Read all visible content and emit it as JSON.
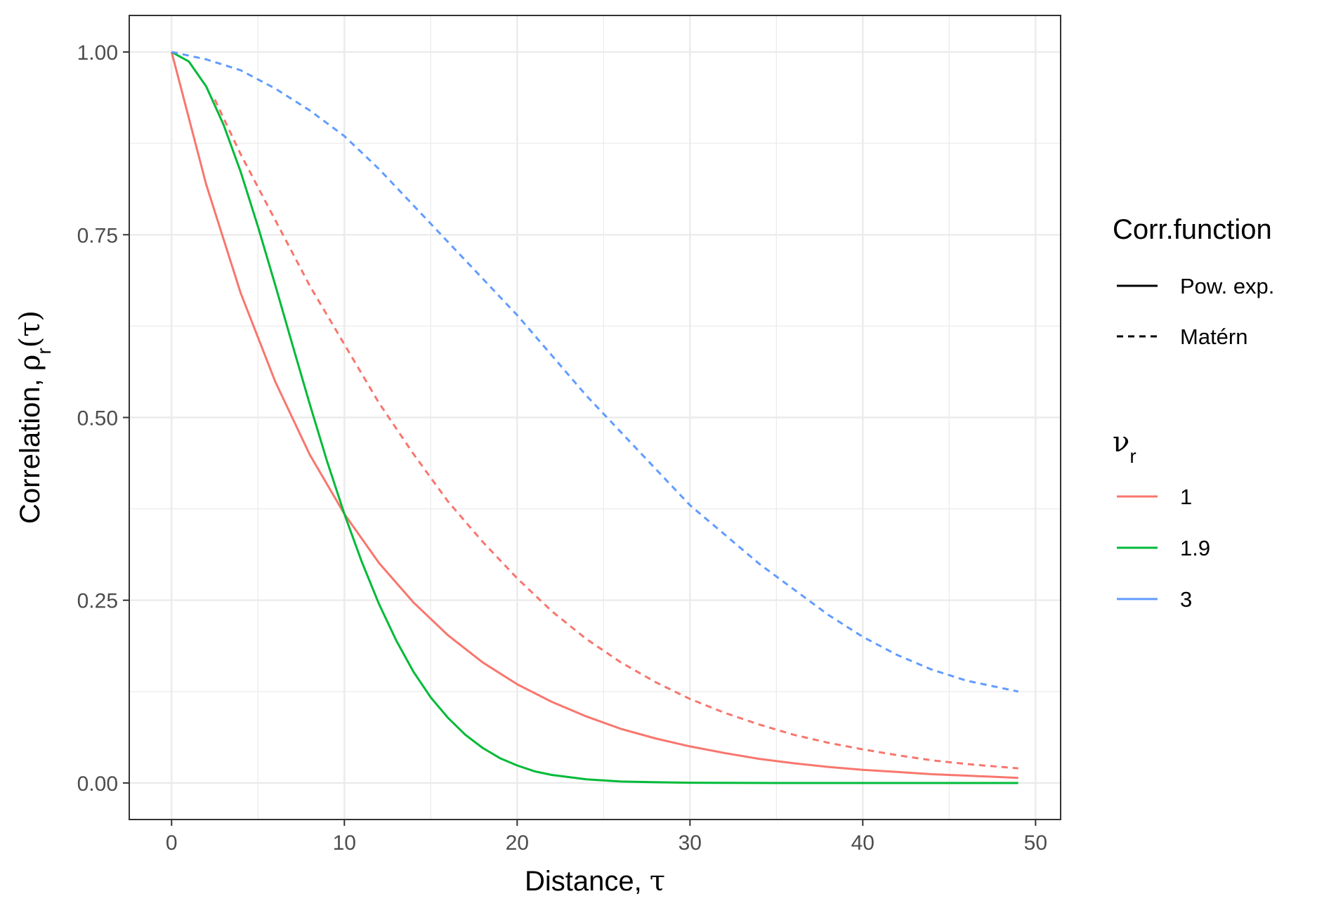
{
  "chart_data": {
    "type": "line",
    "xlabel": "Distance, ",
    "xlabel_symbol": "τ",
    "ylabel": "Correlation, ",
    "ylabel_symbol": "ρ",
    "ylabel_sub": "r",
    "ylabel_arg": "(τ)",
    "xlim": [
      -2.45,
      51.45
    ],
    "ylim": [
      -0.05,
      1.05
    ],
    "x_ticks": [
      0,
      10,
      20,
      30,
      40,
      50
    ],
    "x_tick_labels": [
      "0",
      "10",
      "20",
      "30",
      "40",
      "50"
    ],
    "y_ticks": [
      0,
      0.25,
      0.5,
      0.75,
      1
    ],
    "y_tick_labels": [
      "0.00",
      "0.25",
      "0.50",
      "0.75",
      "1.00"
    ],
    "grid": true,
    "legend_position": "right",
    "legend": {
      "linetype_title": "Corr.function",
      "linetype_items": [
        {
          "label": "Pow. exp.",
          "dash": "solid"
        },
        {
          "label": "Matérn",
          "dash": "dashed"
        }
      ],
      "color_title_symbol": "ν",
      "color_title_sub": "r",
      "color_items": [
        {
          "label": "1",
          "color": "#F8766D"
        },
        {
          "label": "1.9",
          "color": "#00BA38"
        },
        {
          "label": "3",
          "color": "#619CFF"
        }
      ]
    },
    "series": [
      {
        "name": "Pow. exp., 1",
        "color": "#F8766D",
        "dash": "solid",
        "x": [
          0,
          2,
          4,
          6,
          8,
          10,
          12,
          14,
          16,
          18,
          20,
          22,
          24,
          26,
          28,
          30,
          32,
          34,
          36,
          38,
          40,
          42,
          44,
          46,
          48,
          49
        ],
        "y": [
          1.0,
          0.819,
          0.67,
          0.549,
          0.449,
          0.368,
          0.301,
          0.247,
          0.202,
          0.165,
          0.135,
          0.111,
          0.091,
          0.074,
          0.061,
          0.05,
          0.041,
          0.033,
          0.027,
          0.022,
          0.018,
          0.015,
          0.012,
          0.01,
          0.008,
          0.007
        ]
      },
      {
        "name": "Pow. exp., 1.9",
        "color": "#00BA38",
        "dash": "solid",
        "x": [
          0,
          1,
          2,
          3,
          4,
          5,
          6,
          7,
          8,
          9,
          10,
          11,
          12,
          13,
          14,
          15,
          16,
          17,
          18,
          19,
          20,
          21,
          22,
          24,
          26,
          28,
          30,
          35,
          40,
          45,
          49
        ],
        "y": [
          1.0,
          0.987,
          0.953,
          0.901,
          0.836,
          0.761,
          0.681,
          0.599,
          0.518,
          0.44,
          0.368,
          0.303,
          0.245,
          0.195,
          0.152,
          0.117,
          0.089,
          0.066,
          0.048,
          0.034,
          0.024,
          0.016,
          0.011,
          0.005,
          0.002,
          0.001,
          0.0003,
          0.0,
          0.0,
          0.0,
          0.0
        ]
      },
      {
        "name": "Matérn, 1",
        "color": "#F8766D",
        "dash": "dashed",
        "x": [
          2.5,
          4,
          6,
          8,
          10,
          12,
          14,
          16,
          18,
          20,
          22,
          24,
          26,
          28,
          30,
          32,
          34,
          36,
          38,
          40,
          42,
          44,
          46,
          48,
          49
        ],
        "y": [
          0.935,
          0.86,
          0.77,
          0.68,
          0.6,
          0.52,
          0.45,
          0.385,
          0.33,
          0.28,
          0.235,
          0.197,
          0.165,
          0.138,
          0.115,
          0.096,
          0.08,
          0.066,
          0.055,
          0.046,
          0.038,
          0.031,
          0.026,
          0.022,
          0.02
        ]
      },
      {
        "name": "Matérn, 3",
        "color": "#619CFF",
        "dash": "dashed",
        "x": [
          0,
          2,
          4,
          6,
          8,
          10,
          12,
          14,
          16,
          18,
          20,
          22,
          24,
          26,
          28,
          30,
          32,
          34,
          36,
          38,
          40,
          42,
          44,
          46,
          48,
          49
        ],
        "y": [
          1.0,
          0.99,
          0.975,
          0.95,
          0.92,
          0.885,
          0.84,
          0.79,
          0.74,
          0.69,
          0.64,
          0.585,
          0.53,
          0.48,
          0.43,
          0.38,
          0.34,
          0.3,
          0.265,
          0.23,
          0.2,
          0.175,
          0.155,
          0.14,
          0.13,
          0.125
        ]
      }
    ]
  }
}
